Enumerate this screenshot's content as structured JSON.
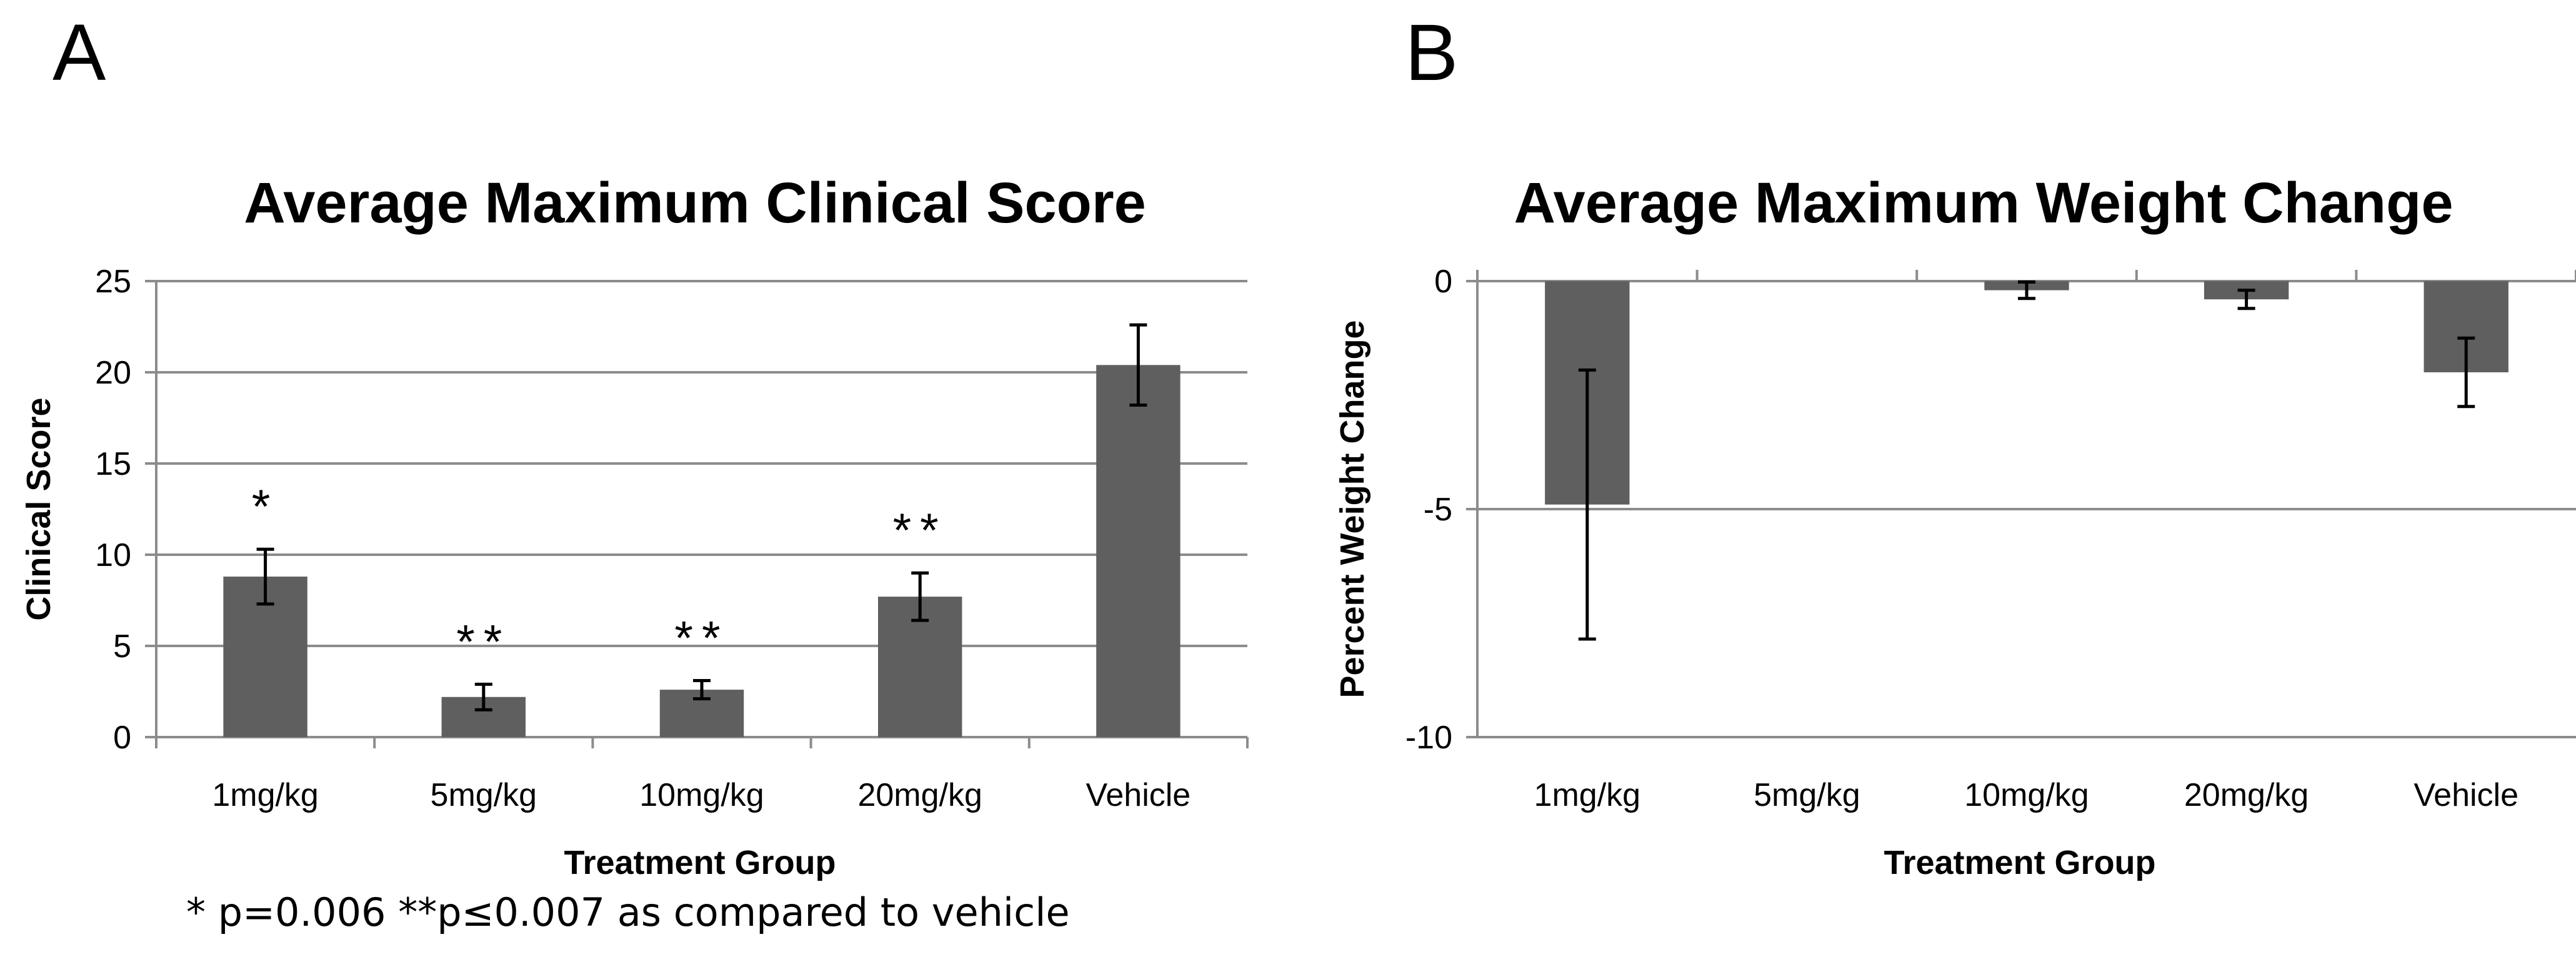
{
  "panels": {
    "a": "A",
    "b": "B"
  },
  "footnote": "* p=0.006   **p≤0.007 as compared to vehicle",
  "colors": {
    "bar": "#5f5f5f",
    "grid": "#8c8c8c",
    "axis": "#8c8c8c",
    "error": "#000000"
  },
  "chart_data": [
    {
      "type": "bar",
      "title": "Average Maximum Clinical Score",
      "xlabel": "Treatment Group",
      "ylabel": "Clinical Score",
      "categories": [
        "1mg/kg",
        "5mg/kg",
        "10mg/kg",
        "20mg/kg",
        "Vehicle"
      ],
      "values": [
        8.8,
        2.2,
        2.6,
        7.7,
        20.4
      ],
      "errors": [
        1.5,
        0.7,
        0.5,
        1.3,
        2.2
      ],
      "significance": [
        "*",
        "**",
        "**",
        "**",
        ""
      ],
      "ylim": [
        0,
        25
      ],
      "yticks": [
        0,
        5,
        10,
        15,
        20,
        25
      ],
      "grid": true
    },
    {
      "type": "bar",
      "title": "Average Maximum Weight Change",
      "xlabel": "Treatment Group",
      "ylabel": "Percent Weight Change",
      "categories": [
        "1mg/kg",
        "5mg/kg",
        "10mg/kg",
        "20mg/kg",
        "Vehicle"
      ],
      "values": [
        -4.9,
        0,
        -0.2,
        -0.4,
        -2.0
      ],
      "errors": [
        2.95,
        0,
        0.18,
        0.2,
        0.75
      ],
      "ylim": [
        -10,
        0
      ],
      "yticks": [
        0,
        -5,
        -10
      ],
      "grid": true
    }
  ]
}
